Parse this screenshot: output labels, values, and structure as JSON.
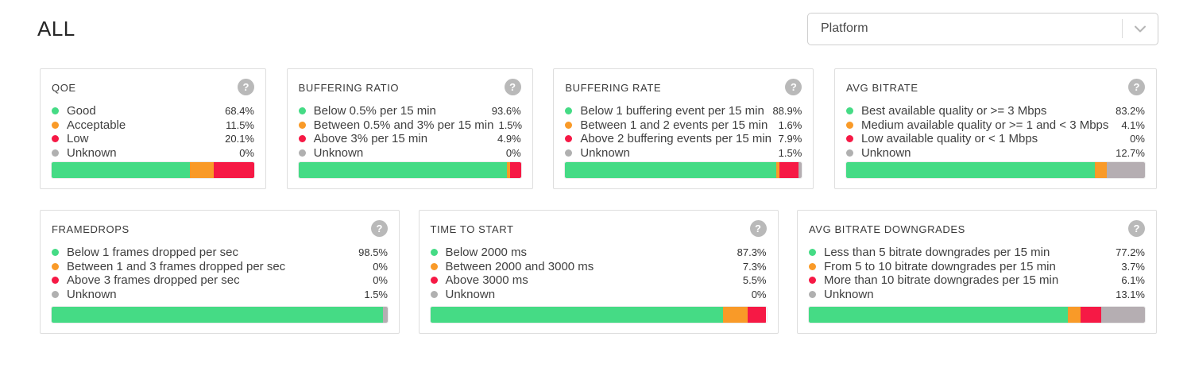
{
  "header": {
    "title": "ALL",
    "platform_dropdown": {
      "label": "Platform"
    }
  },
  "help_icon_glyph": "?",
  "colors": {
    "good": "#45db85",
    "acceptable": "#f99a28",
    "bad": "#f61945",
    "unknown": "#b5aeb2",
    "dot_unknown": "#b0b0b0"
  },
  "card_rows": [
    [
      {
        "title": "QOE",
        "rows": [
          {
            "label": "Good",
            "value": "68.4%",
            "pct": 68.4,
            "color": "good"
          },
          {
            "label": "Acceptable",
            "value": "11.5%",
            "pct": 11.5,
            "color": "acceptable"
          },
          {
            "label": "Low",
            "value": "20.1%",
            "pct": 20.1,
            "color": "bad"
          },
          {
            "label": "Unknown",
            "value": "0%",
            "pct": 0,
            "color": "unknown"
          }
        ]
      },
      {
        "title": "BUFFERING RATIO",
        "rows": [
          {
            "label": "Below 0.5% per 15 min",
            "value": "93.6%",
            "pct": 93.6,
            "color": "good"
          },
          {
            "label": "Between 0.5% and 3% per 15 min",
            "value": "1.5%",
            "pct": 1.5,
            "color": "acceptable"
          },
          {
            "label": "Above 3% per 15 min",
            "value": "4.9%",
            "pct": 4.9,
            "color": "bad"
          },
          {
            "label": "Unknown",
            "value": "0%",
            "pct": 0,
            "color": "unknown"
          }
        ]
      },
      {
        "title": "BUFFERING RATE",
        "rows": [
          {
            "label": "Below 1 buffering event per 15 min",
            "value": "88.9%",
            "pct": 88.9,
            "color": "good"
          },
          {
            "label": "Between 1 and 2 events per 15 min",
            "value": "1.6%",
            "pct": 1.6,
            "color": "acceptable"
          },
          {
            "label": "Above 2 buffering events per 15 min",
            "value": "7.9%",
            "pct": 7.9,
            "color": "bad"
          },
          {
            "label": "Unknown",
            "value": "1.5%",
            "pct": 1.5,
            "color": "unknown"
          }
        ]
      },
      {
        "title": "AVG BITRATE",
        "rows": [
          {
            "label": "Best available quality or >= 3 Mbps",
            "value": "83.2%",
            "pct": 83.2,
            "color": "good"
          },
          {
            "label": "Medium available quality or >= 1 and < 3 Mbps",
            "value": "4.1%",
            "pct": 4.1,
            "color": "acceptable"
          },
          {
            "label": "Low available quality or < 1 Mbps",
            "value": "0%",
            "pct": 0,
            "color": "bad"
          },
          {
            "label": "Unknown",
            "value": "12.7%",
            "pct": 12.7,
            "color": "unknown"
          }
        ]
      }
    ],
    [
      {
        "title": "FRAMEDROPS",
        "rows": [
          {
            "label": "Below 1 frames dropped per sec",
            "value": "98.5%",
            "pct": 98.5,
            "color": "good"
          },
          {
            "label": "Between 1 and 3 frames dropped per sec",
            "value": "0%",
            "pct": 0,
            "color": "acceptable"
          },
          {
            "label": "Above 3 frames dropped per sec",
            "value": "0%",
            "pct": 0,
            "color": "bad"
          },
          {
            "label": "Unknown",
            "value": "1.5%",
            "pct": 1.5,
            "color": "unknown"
          }
        ]
      },
      {
        "title": "TIME TO START",
        "rows": [
          {
            "label": "Below 2000 ms",
            "value": "87.3%",
            "pct": 87.3,
            "color": "good"
          },
          {
            "label": "Between 2000 and 3000 ms",
            "value": "7.3%",
            "pct": 7.3,
            "color": "acceptable"
          },
          {
            "label": "Above 3000 ms",
            "value": "5.5%",
            "pct": 5.5,
            "color": "bad"
          },
          {
            "label": "Unknown",
            "value": "0%",
            "pct": 0,
            "color": "unknown"
          }
        ]
      },
      {
        "title": "AVG BITRATE DOWNGRADES",
        "rows": [
          {
            "label": "Less than 5 bitrate downgrades per 15 min",
            "value": "77.2%",
            "pct": 77.2,
            "color": "good"
          },
          {
            "label": "From 5 to 10 bitrate downgrades per 15 min",
            "value": "3.7%",
            "pct": 3.7,
            "color": "acceptable"
          },
          {
            "label": "More than 10 bitrate downgrades per 15 min",
            "value": "6.1%",
            "pct": 6.1,
            "color": "bad"
          },
          {
            "label": "Unknown",
            "value": "13.1%",
            "pct": 13.1,
            "color": "unknown"
          }
        ]
      }
    ]
  ]
}
